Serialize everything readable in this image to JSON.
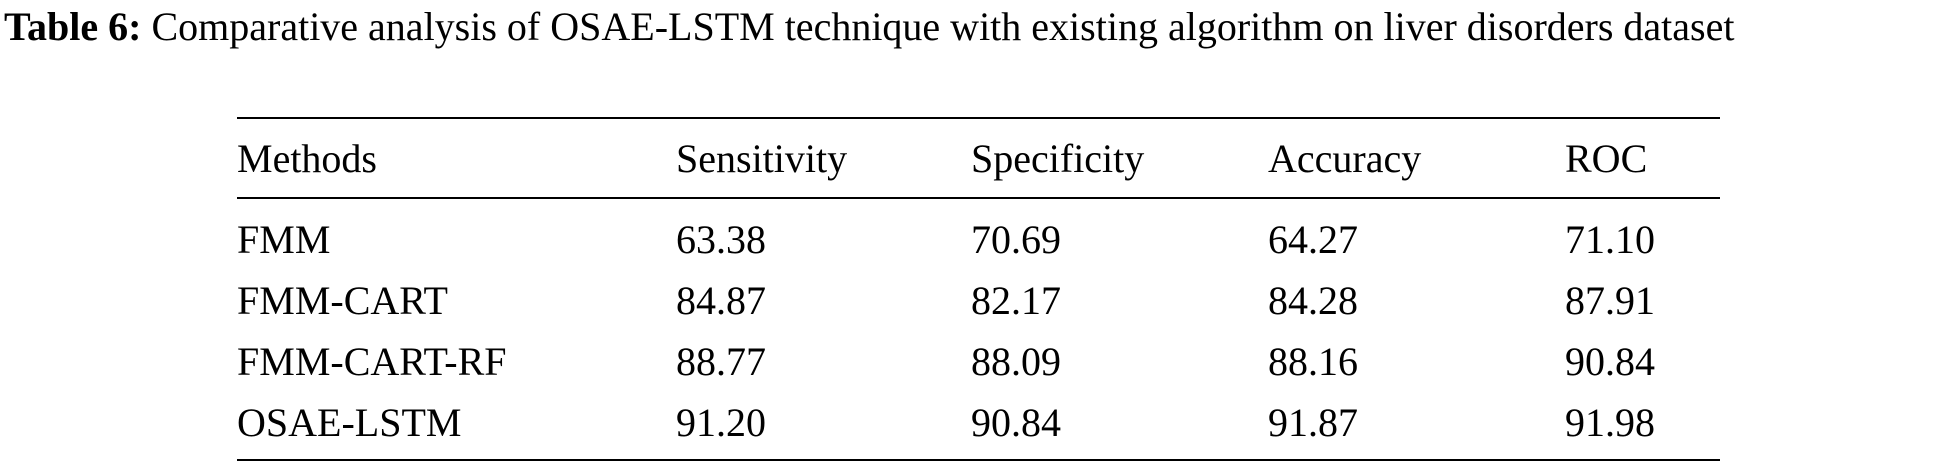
{
  "caption": {
    "label": "Table 6:",
    "text": " Comparative analysis of OSAE-LSTM technique with existing algorithm on liver disorders dataset"
  },
  "table": {
    "headers": [
      "Methods",
      "Sensitivity",
      "Specificity",
      "Accuracy",
      "ROC"
    ],
    "rows": [
      [
        "FMM",
        "63.38",
        "70.69",
        "64.27",
        "71.10"
      ],
      [
        "FMM-CART",
        "84.87",
        "82.17",
        "84.28",
        "87.91"
      ],
      [
        "FMM-CART-RF",
        "88.77",
        "88.09",
        "88.16",
        "90.84"
      ],
      [
        "OSAE-LSTM",
        "91.20",
        "90.84",
        "91.87",
        "91.98"
      ]
    ]
  }
}
